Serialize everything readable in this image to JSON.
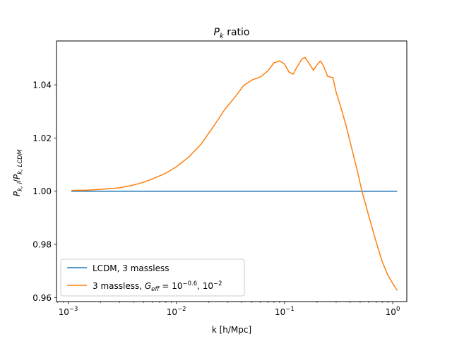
{
  "chart_data": {
    "type": "line",
    "title_main": "P",
    "title_sub": "k",
    "title_rest": " ratio",
    "xlabel": "k [h/Mpc]",
    "ylabel": "P_{k,i}/P_{k,LCDM}",
    "ylabel_parts": {
      "p1": "P",
      "s1": "k, i",
      "slash": "/",
      "p2": "P",
      "s2": "k, LCDM"
    },
    "xscale": "log",
    "xlim": [
      0.00078,
      1.35
    ],
    "ylim": [
      0.9585,
      1.0565
    ],
    "grid": false,
    "legend_position": "lower-left",
    "x_ticks": [
      {
        "value": 0.001,
        "base": "10",
        "exp": "−3"
      },
      {
        "value": 0.01,
        "base": "10",
        "exp": "−2"
      },
      {
        "value": 0.1,
        "base": "10",
        "exp": "−1"
      },
      {
        "value": 1,
        "base": "10",
        "exp": "0"
      }
    ],
    "y_ticks": [
      {
        "value": 0.96,
        "label": "0.96"
      },
      {
        "value": 0.98,
        "label": "0.98"
      },
      {
        "value": 1.0,
        "label": "1.00"
      },
      {
        "value": 1.02,
        "label": "1.02"
      },
      {
        "value": 1.04,
        "label": "1.04"
      }
    ],
    "series": [
      {
        "name": "LCDM, 3 massless",
        "color": "#1f77b4",
        "points": [
          [
            0.00107,
            1.0
          ],
          [
            1.1,
            1.0
          ]
        ]
      },
      {
        "name": "3 massless, G_eff = 10^-0.6, 10^-2",
        "legend_parts": {
          "a": "3 massless, ",
          "g": "G",
          "gsub": "eff",
          "eq": " = 10",
          "e1": "−0.6",
          "mid": ", 10",
          "e2": "−2"
        },
        "color": "#ff7f0e",
        "points": [
          [
            0.00107,
            1.0003
          ],
          [
            0.0015,
            1.0004
          ],
          [
            0.002,
            1.0007
          ],
          [
            0.003,
            1.0013
          ],
          [
            0.004,
            1.0023
          ],
          [
            0.005,
            1.0034
          ],
          [
            0.006,
            1.0046
          ],
          [
            0.008,
            1.0068
          ],
          [
            0.01,
            1.0092
          ],
          [
            0.013,
            1.0128
          ],
          [
            0.017,
            1.0178
          ],
          [
            0.022,
            1.0243
          ],
          [
            0.028,
            1.0307
          ],
          [
            0.035,
            1.0355
          ],
          [
            0.042,
            1.0398
          ],
          [
            0.05,
            1.0418
          ],
          [
            0.06,
            1.043
          ],
          [
            0.07,
            1.0452
          ],
          [
            0.08,
            1.0483
          ],
          [
            0.09,
            1.049
          ],
          [
            0.1,
            1.0478
          ],
          [
            0.11,
            1.0448
          ],
          [
            0.12,
            1.044
          ],
          [
            0.13,
            1.0466
          ],
          [
            0.145,
            1.0498
          ],
          [
            0.155,
            1.0503
          ],
          [
            0.17,
            1.0478
          ],
          [
            0.185,
            1.0455
          ],
          [
            0.2,
            1.0476
          ],
          [
            0.215,
            1.049
          ],
          [
            0.23,
            1.047
          ],
          [
            0.25,
            1.0432
          ],
          [
            0.28,
            1.0427
          ],
          [
            0.3,
            1.0372
          ],
          [
            0.33,
            1.0318
          ],
          [
            0.37,
            1.0248
          ],
          [
            0.42,
            1.0158
          ],
          [
            0.47,
            1.0078
          ],
          [
            0.52,
            1.0
          ],
          [
            0.6,
            0.9908
          ],
          [
            0.7,
            0.9812
          ],
          [
            0.8,
            0.9735
          ],
          [
            0.9,
            0.9685
          ],
          [
            1.0,
            0.9653
          ],
          [
            1.1,
            0.9627
          ]
        ]
      }
    ]
  }
}
